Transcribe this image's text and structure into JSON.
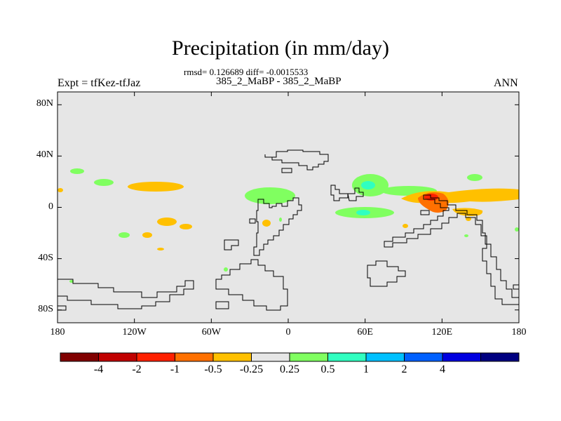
{
  "title": "Precipitation (in mm/day)",
  "subtitle": "rmsd= 0.126689 diff= -0.0015533",
  "center_label": "385_2_MaBP - 385_2_MaBP",
  "left_label": "Expt = tfKez-tfJaz",
  "right_label": "ANN",
  "colors": {
    "background": "#e6e6e6",
    "outline": "#000000"
  },
  "map": {
    "lat_ticks": [
      {
        "lat": 80,
        "label": "80N"
      },
      {
        "lat": 40,
        "label": "40N"
      },
      {
        "lat": 0,
        "label": "0"
      },
      {
        "lat": -40,
        "label": "40S"
      },
      {
        "lat": -80,
        "label": "80S"
      }
    ],
    "lon_ticks": [
      {
        "lon": -180,
        "label": "180"
      },
      {
        "lon": -120,
        "label": "120W"
      },
      {
        "lon": -60,
        "label": "60W"
      },
      {
        "lon": 0,
        "label": "0"
      },
      {
        "lon": 60,
        "label": "60E"
      },
      {
        "lon": 120,
        "label": "120E"
      },
      {
        "lon": 180,
        "label": "180"
      }
    ],
    "lon_range": [
      -180,
      180
    ],
    "lat_range": [
      -90,
      90
    ]
  },
  "colorbar": {
    "colors": [
      "#800000",
      "#c00000",
      "#ff2000",
      "#ff7000",
      "#ffc000",
      "#e6e6e6",
      "#80ff60",
      "#30ffc0",
      "#00c0ff",
      "#0060ff",
      "#0000e0",
      "#000080"
    ],
    "labels": [
      "-4",
      "-2",
      "-1",
      "-0.5",
      "-0.25",
      "0.25",
      "0.5",
      "1",
      "2",
      "4"
    ]
  }
}
